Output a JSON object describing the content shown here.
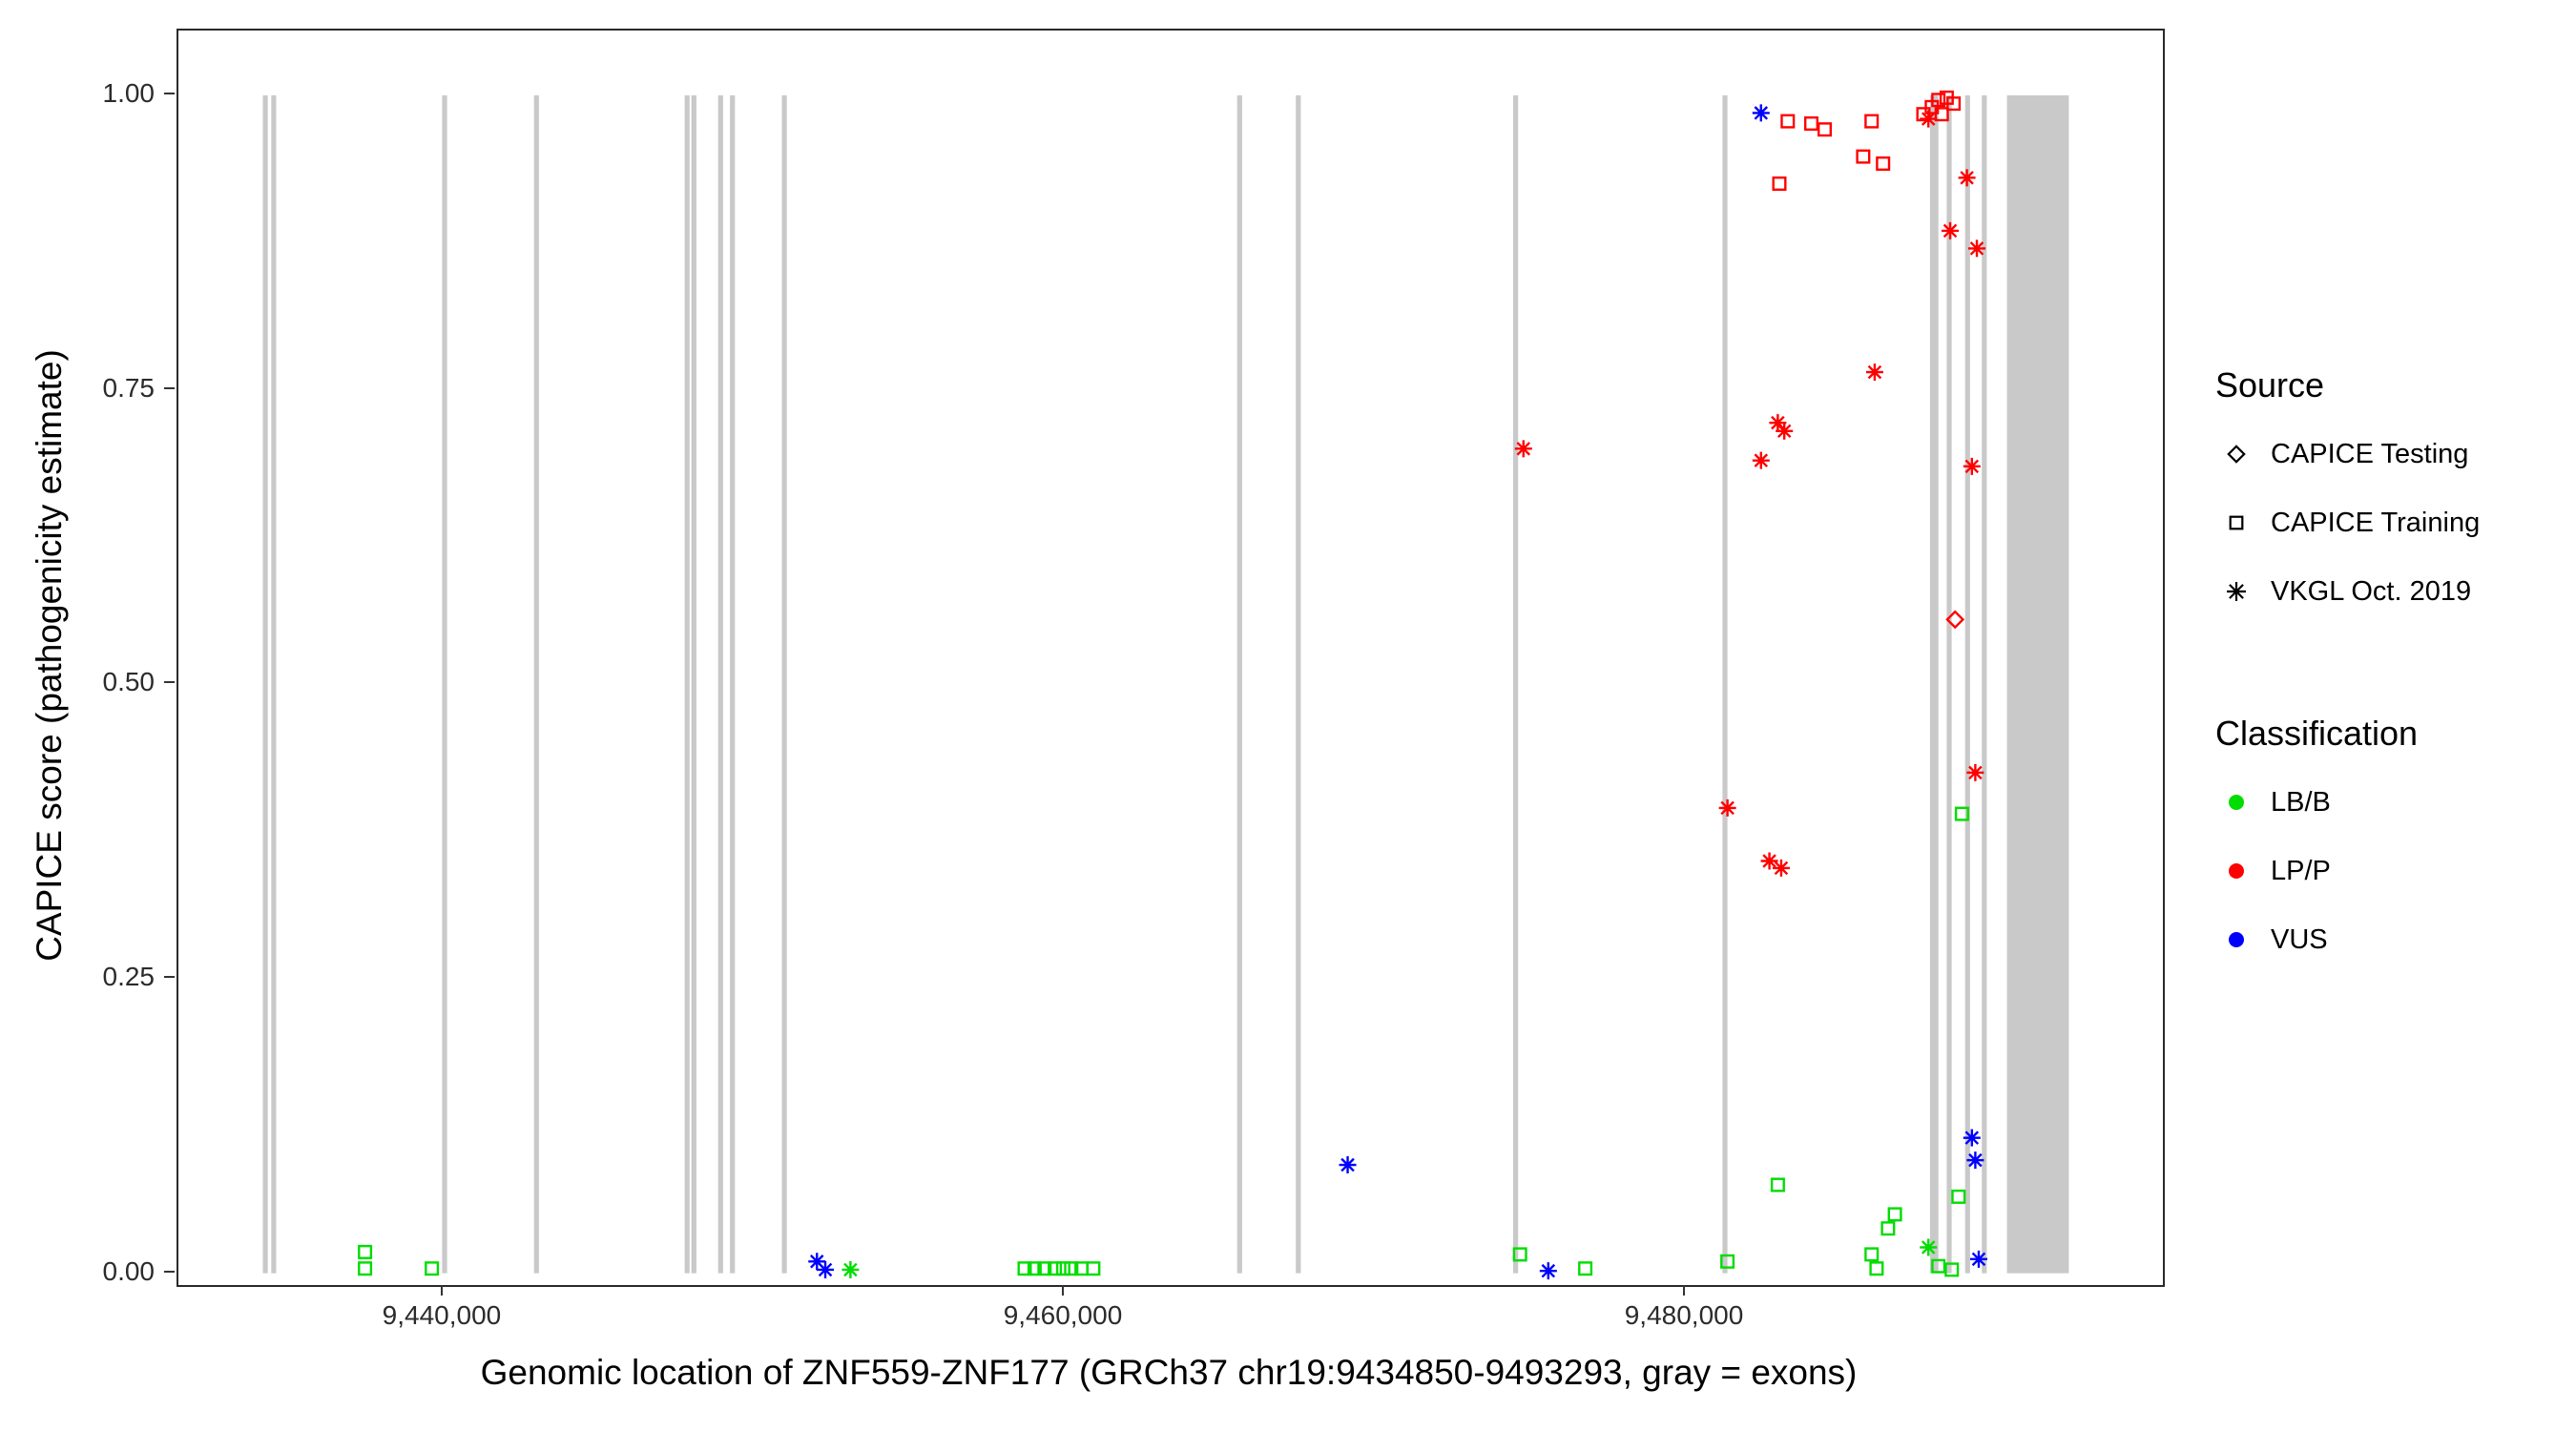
{
  "figure": {
    "y_axis_title": "CAPICE score (pathogenicity estimate)",
    "x_axis_title": "Genomic location of ZNF559-ZNF177 (GRCh37 chr19:9434850-9493293, gray = exons)"
  },
  "axes": {
    "x_range": [
      9431460,
      9495360
    ],
    "y_range": [
      -0.01,
      1.055
    ],
    "x_ticks": [
      {
        "value": 9440000,
        "label": "9,440,000"
      },
      {
        "value": 9460000,
        "label": "9,460,000"
      },
      {
        "value": 9480000,
        "label": "9,480,000"
      }
    ],
    "y_ticks": [
      {
        "value": 1.0,
        "label": "1.00"
      },
      {
        "value": 0.75,
        "label": "0.75"
      },
      {
        "value": 0.5,
        "label": "0.50"
      },
      {
        "value": 0.25,
        "label": "0.25"
      },
      {
        "value": 0.0,
        "label": "0.00"
      }
    ]
  },
  "legend": {
    "source": {
      "title": "Source",
      "items": [
        {
          "label": "CAPICE Testing",
          "marker": "diamond"
        },
        {
          "label": "CAPICE Training",
          "marker": "square"
        },
        {
          "label": "VKGL Oct. 2019",
          "marker": "asterisk"
        }
      ]
    },
    "classification": {
      "title": "Classification",
      "items": [
        {
          "label": "LB/B",
          "color_key": "LB/B"
        },
        {
          "label": "LP/P",
          "color_key": "LP/P"
        },
        {
          "label": "VUS",
          "color_key": "VUS"
        }
      ]
    }
  },
  "colors": {
    "LB/B": "#00dd00",
    "LP/P": "#ff0000",
    "VUS": "#0000ff",
    "exon": "#c9c9c9",
    "legend_glyph": "#000000"
  },
  "chart_data": {
    "type": "scatter",
    "title": "",
    "xlabel": "Genomic location of ZNF559-ZNF177 (GRCh37 chr19:9434850-9493293, gray = exons)",
    "ylabel": "CAPICE score (pathogenicity estimate)",
    "legend_position": "right",
    "grid": false,
    "exons": [
      [
        9434180,
        9434340
      ],
      [
        9434450,
        9434610
      ],
      [
        9439950,
        9440110
      ],
      [
        9442910,
        9443070
      ],
      [
        9447760,
        9447920
      ],
      [
        9447980,
        9448140
      ],
      [
        9448840,
        9449000
      ],
      [
        9449220,
        9449380
      ],
      [
        9450890,
        9451050
      ],
      [
        9465550,
        9465710
      ],
      [
        9467440,
        9467600
      ],
      [
        9474440,
        9474600
      ],
      [
        9481180,
        9481340
      ],
      [
        9487860,
        9488130
      ],
      [
        9488400,
        9488560
      ],
      [
        9488990,
        9489150
      ],
      [
        9489530,
        9489690
      ],
      [
        9490340,
        9492330
      ]
    ],
    "points": [
      {
        "pos": 9437470,
        "score": 0.018,
        "source": "CAPICE Training",
        "classification": "LB/B"
      },
      {
        "pos": 9437470,
        "score": 0.004,
        "source": "CAPICE Training",
        "classification": "LB/B"
      },
      {
        "pos": 9439620,
        "score": 0.004,
        "source": "CAPICE Training",
        "classification": "LB/B"
      },
      {
        "pos": 9458710,
        "score": 0.004,
        "source": "CAPICE Training",
        "classification": "LB/B"
      },
      {
        "pos": 9459030,
        "score": 0.004,
        "source": "CAPICE Training",
        "classification": "LB/B"
      },
      {
        "pos": 9459350,
        "score": 0.004,
        "source": "CAPICE Training",
        "classification": "LB/B"
      },
      {
        "pos": 9459680,
        "score": 0.004,
        "source": "CAPICE Training",
        "classification": "LB/B"
      },
      {
        "pos": 9459950,
        "score": 0.004,
        "source": "CAPICE Training",
        "classification": "LB/B"
      },
      {
        "pos": 9460210,
        "score": 0.004,
        "source": "CAPICE Training",
        "classification": "LB/B"
      },
      {
        "pos": 9460540,
        "score": 0.004,
        "source": "CAPICE Training",
        "classification": "LB/B"
      },
      {
        "pos": 9460920,
        "score": 0.004,
        "source": "CAPICE Training",
        "classification": "LB/B"
      },
      {
        "pos": 9474660,
        "score": 0.016,
        "source": "CAPICE Training",
        "classification": "LB/B"
      },
      {
        "pos": 9476760,
        "score": 0.004,
        "source": "CAPICE Training",
        "classification": "LB/B"
      },
      {
        "pos": 9481340,
        "score": 0.01,
        "source": "CAPICE Training",
        "classification": "LB/B"
      },
      {
        "pos": 9482960,
        "score": 0.075,
        "source": "CAPICE Training",
        "classification": "LB/B"
      },
      {
        "pos": 9485980,
        "score": 0.016,
        "source": "CAPICE Training",
        "classification": "LB/B"
      },
      {
        "pos": 9486140,
        "score": 0.004,
        "source": "CAPICE Training",
        "classification": "LB/B"
      },
      {
        "pos": 9486510,
        "score": 0.038,
        "source": "CAPICE Training",
        "classification": "LB/B"
      },
      {
        "pos": 9486730,
        "score": 0.05,
        "source": "CAPICE Training",
        "classification": "LB/B"
      },
      {
        "pos": 9488130,
        "score": 0.006,
        "source": "CAPICE Training",
        "classification": "LB/B"
      },
      {
        "pos": 9488560,
        "score": 0.003,
        "source": "CAPICE Training",
        "classification": "LB/B"
      },
      {
        "pos": 9488780,
        "score": 0.065,
        "source": "CAPICE Training",
        "classification": "LB/B"
      },
      {
        "pos": 9488890,
        "score": 0.39,
        "source": "CAPICE Training",
        "classification": "LB/B"
      },
      {
        "pos": 9453100,
        "score": 0.003,
        "source": "VKGL Oct. 2019",
        "classification": "LB/B"
      },
      {
        "pos": 9487810,
        "score": 0.022,
        "source": "VKGL Oct. 2019",
        "classification": "LB/B"
      },
      {
        "pos": 9452020,
        "score": 0.01,
        "source": "VKGL Oct. 2019",
        "classification": "VUS"
      },
      {
        "pos": 9452290,
        "score": 0.003,
        "source": "VKGL Oct. 2019",
        "classification": "VUS"
      },
      {
        "pos": 9469110,
        "score": 0.092,
        "source": "VKGL Oct. 2019",
        "classification": "VUS"
      },
      {
        "pos": 9475570,
        "score": 0.002,
        "source": "VKGL Oct. 2019",
        "classification": "VUS"
      },
      {
        "pos": 9482420,
        "score": 0.985,
        "source": "VKGL Oct. 2019",
        "classification": "VUS"
      },
      {
        "pos": 9489210,
        "score": 0.115,
        "source": "VKGL Oct. 2019",
        "classification": "VUS"
      },
      {
        "pos": 9489320,
        "score": 0.096,
        "source": "VKGL Oct. 2019",
        "classification": "VUS"
      },
      {
        "pos": 9489430,
        "score": 0.012,
        "source": "VKGL Oct. 2019",
        "classification": "VUS"
      },
      {
        "pos": 9483010,
        "score": 0.925,
        "source": "CAPICE Training",
        "classification": "LP/P"
      },
      {
        "pos": 9483280,
        "score": 0.978,
        "source": "CAPICE Training",
        "classification": "LP/P"
      },
      {
        "pos": 9484040,
        "score": 0.976,
        "source": "CAPICE Training",
        "classification": "LP/P"
      },
      {
        "pos": 9484470,
        "score": 0.971,
        "source": "CAPICE Training",
        "classification": "LP/P"
      },
      {
        "pos": 9485710,
        "score": 0.948,
        "source": "CAPICE Training",
        "classification": "LP/P"
      },
      {
        "pos": 9485980,
        "score": 0.978,
        "source": "CAPICE Training",
        "classification": "LP/P"
      },
      {
        "pos": 9486350,
        "score": 0.942,
        "source": "CAPICE Training",
        "classification": "LP/P"
      },
      {
        "pos": 9487650,
        "score": 0.984,
        "source": "CAPICE Training",
        "classification": "LP/P"
      },
      {
        "pos": 9487920,
        "score": 0.99,
        "source": "CAPICE Training",
        "classification": "LP/P"
      },
      {
        "pos": 9488130,
        "score": 0.996,
        "source": "CAPICE Training",
        "classification": "LP/P"
      },
      {
        "pos": 9488400,
        "score": 0.998,
        "source": "CAPICE Training",
        "classification": "LP/P"
      },
      {
        "pos": 9488620,
        "score": 0.993,
        "source": "CAPICE Training",
        "classification": "LP/P"
      },
      {
        "pos": 9488240,
        "score": 0.984,
        "source": "CAPICE Training",
        "classification": "LP/P"
      },
      {
        "pos": 9474770,
        "score": 0.7,
        "source": "VKGL Oct. 2019",
        "classification": "LP/P"
      },
      {
        "pos": 9481340,
        "score": 0.395,
        "source": "VKGL Oct. 2019",
        "classification": "LP/P"
      },
      {
        "pos": 9482420,
        "score": 0.69,
        "source": "VKGL Oct. 2019",
        "classification": "LP/P"
      },
      {
        "pos": 9482960,
        "score": 0.722,
        "source": "VKGL Oct. 2019",
        "classification": "LP/P"
      },
      {
        "pos": 9483170,
        "score": 0.715,
        "source": "VKGL Oct. 2019",
        "classification": "LP/P"
      },
      {
        "pos": 9482690,
        "score": 0.35,
        "source": "VKGL Oct. 2019",
        "classification": "LP/P"
      },
      {
        "pos": 9483070,
        "score": 0.344,
        "source": "VKGL Oct. 2019",
        "classification": "LP/P"
      },
      {
        "pos": 9486080,
        "score": 0.765,
        "source": "VKGL Oct. 2019",
        "classification": "LP/P"
      },
      {
        "pos": 9487810,
        "score": 0.98,
        "source": "VKGL Oct. 2019",
        "classification": "LP/P"
      },
      {
        "pos": 9488510,
        "score": 0.885,
        "source": "VKGL Oct. 2019",
        "classification": "LP/P"
      },
      {
        "pos": 9489050,
        "score": 0.93,
        "source": "VKGL Oct. 2019",
        "classification": "LP/P"
      },
      {
        "pos": 9489370,
        "score": 0.87,
        "source": "VKGL Oct. 2019",
        "classification": "LP/P"
      },
      {
        "pos": 9489210,
        "score": 0.685,
        "source": "VKGL Oct. 2019",
        "classification": "LP/P"
      },
      {
        "pos": 9489320,
        "score": 0.425,
        "source": "VKGL Oct. 2019",
        "classification": "LP/P"
      },
      {
        "pos": 9488670,
        "score": 0.555,
        "source": "CAPICE Testing",
        "classification": "LP/P"
      }
    ]
  }
}
